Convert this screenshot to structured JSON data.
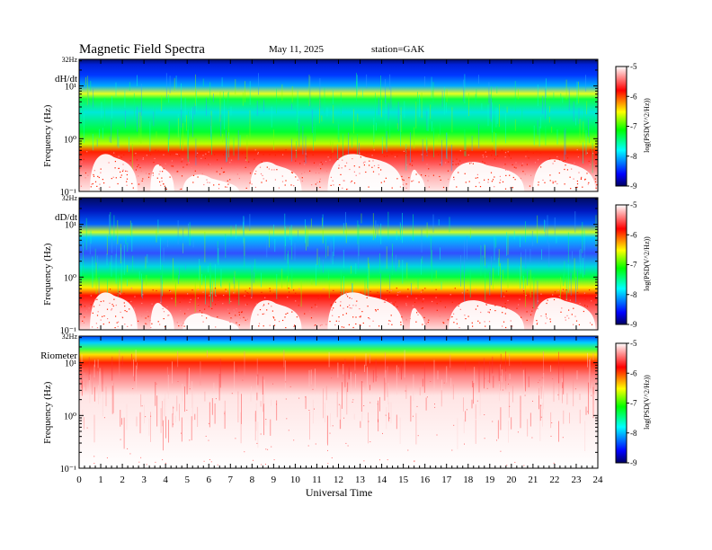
{
  "header": {
    "title": "Magnetic  Field  Spectra",
    "date": "May 11, 2025",
    "station": "station=GAK"
  },
  "chart_data": {
    "type": "heatmap",
    "x_ticks": [
      "0",
      "1",
      "2",
      "3",
      "4",
      "5",
      "6",
      "7",
      "8",
      "9",
      "10",
      "11",
      "12",
      "13",
      "14",
      "15",
      "16",
      "17",
      "18",
      "19",
      "20",
      "21",
      "22",
      "23",
      "24"
    ],
    "xlabel": "Universal Time",
    "xlim": [
      0,
      24
    ],
    "colorbar": {
      "label": "log(PSD(V^2/Hz))",
      "ticks": [
        "-5",
        "-6",
        "-7",
        "-8",
        "-9"
      ],
      "range": [
        -9,
        -5
      ],
      "colors": [
        "#000060",
        "#0000ff",
        "#00ffff",
        "#00ff00",
        "#ffff00",
        "#ff0000",
        "#ffffff"
      ]
    },
    "panels": [
      {
        "name": "dH/dt",
        "ylabel": "Frequency  (Hz)",
        "top_label": "32Hz",
        "y_ticks": [
          "10¹",
          "10⁰",
          "10⁻¹"
        ],
        "ylim": [
          0.1,
          32
        ]
      },
      {
        "name": "dD/dt",
        "ylabel": "Frequency  (Hz)",
        "top_label": "32Hz",
        "y_ticks": [
          "10¹",
          "10⁰",
          "10⁻¹"
        ],
        "ylim": [
          0.1,
          32
        ]
      },
      {
        "name": "Riometer",
        "ylabel": "Frequency  (Hz)",
        "top_label": "32Hz",
        "y_ticks": [
          "10¹",
          "10⁰",
          "10⁻¹"
        ],
        "ylim": [
          0.1,
          32
        ]
      }
    ]
  }
}
